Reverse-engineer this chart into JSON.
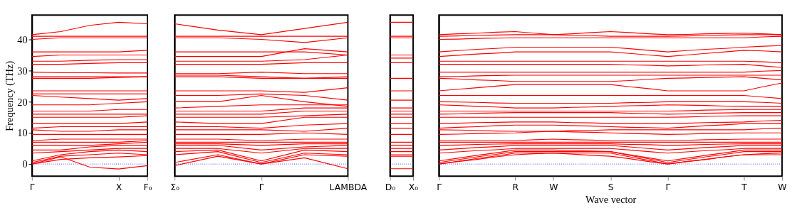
{
  "chart_data": [
    {
      "type": "line",
      "ylabel": "Frequency (THz)",
      "categories": [
        "Γ",
        null,
        null,
        "X",
        "F₀"
      ],
      "ylim": [
        -3.9,
        47.8
      ],
      "yticks": [
        0,
        10,
        20,
        30,
        40
      ],
      "legend": false,
      "marker": "none",
      "line_style": "solid",
      "ref_lines": [
        {
          "axis": "y",
          "value": 0,
          "color": "#0000ff",
          "line_style": "dotted"
        }
      ],
      "series": [
        {
          "color": "#ff0000",
          "values": [
            0,
            2.3,
            -1,
            -1.6,
            -0.5
          ]
        },
        {
          "color": "#ff0000",
          "values": [
            0,
            1.5,
            2,
            2.3,
            2.7
          ]
        },
        {
          "color": "#ff0000",
          "values": [
            0.5,
            2.5,
            3,
            3.5,
            3
          ]
        },
        {
          "color": "#ff0000",
          "values": [
            1,
            3,
            4,
            4.5,
            4
          ]
        },
        {
          "color": "#ff0000",
          "values": [
            3.5,
            4,
            4.5,
            5,
            5
          ]
        },
        {
          "color": "#ff0000",
          "values": [
            4.5,
            4.5,
            5.5,
            6,
            6
          ]
        },
        {
          "color": "#ff0000",
          "values": [
            6,
            6,
            6,
            6.5,
            7
          ]
        },
        {
          "color": "#ff0000",
          "values": [
            7,
            7,
            7,
            7,
            7.5
          ]
        },
        {
          "color": "#ff0000",
          "values": [
            7.5,
            8,
            8,
            8,
            8
          ]
        },
        {
          "color": "#ff0000",
          "values": [
            9.5,
            9.5,
            9.5,
            9.5,
            9.5
          ]
        },
        {
          "color": "#ff0000",
          "values": [
            11,
            10.5,
            10.5,
            11,
            11
          ]
        },
        {
          "color": "#ff0000",
          "values": [
            11.5,
            12,
            12,
            12,
            12
          ]
        },
        {
          "color": "#ff0000",
          "values": [
            13,
            13,
            13,
            13,
            13.5
          ]
        },
        {
          "color": "#ff0000",
          "values": [
            15,
            15,
            15,
            15,
            15.5
          ]
        },
        {
          "color": "#ff0000",
          "values": [
            16,
            16,
            16,
            16,
            16
          ]
        },
        {
          "color": "#ff0000",
          "values": [
            17,
            17,
            17,
            17.5,
            17.5
          ]
        },
        {
          "color": "#ff0000",
          "values": [
            19,
            19,
            19,
            19.5,
            20
          ]
        },
        {
          "color": "#ff0000",
          "values": [
            22,
            21.5,
            21,
            20.5,
            21
          ]
        },
        {
          "color": "#ff0000",
          "values": [
            22.5,
            22.5,
            22.5,
            22.5,
            22.5
          ]
        },
        {
          "color": "#ff0000",
          "values": [
            23.5,
            23.5,
            23.5,
            23.5,
            23.5
          ]
        },
        {
          "color": "#ff0000",
          "values": [
            27.5,
            27.5,
            27.5,
            27.8,
            28
          ]
        },
        {
          "color": "#ff0000",
          "values": [
            28,
            28,
            28,
            28,
            28
          ]
        },
        {
          "color": "#ff0000",
          "values": [
            29.5,
            29.3,
            29.3,
            29.2,
            29.2
          ]
        },
        {
          "color": "#ff0000",
          "values": [
            32,
            32,
            32.3,
            32.5,
            32.5
          ]
        },
        {
          "color": "#ff0000",
          "values": [
            33,
            33,
            33.3,
            33.5,
            33.5
          ]
        },
        {
          "color": "#ff0000",
          "values": [
            34.5,
            35,
            35,
            35,
            35
          ]
        },
        {
          "color": "#ff0000",
          "values": [
            36,
            36,
            36,
            36,
            36.5
          ]
        },
        {
          "color": "#ff0000",
          "values": [
            40,
            40.5,
            40.5,
            40.5,
            40.5
          ]
        },
        {
          "color": "#ff0000",
          "values": [
            41,
            41,
            41,
            41,
            41
          ]
        },
        {
          "color": "#ff0000",
          "values": [
            41.5,
            42.5,
            44.5,
            45.5,
            45
          ]
        }
      ]
    },
    {
      "type": "line",
      "categories": [
        "Σ₀",
        null,
        "Γ",
        null,
        "LAMBDA"
      ],
      "ylim": [
        -3.9,
        47.8
      ],
      "yticks": [
        0,
        10,
        20,
        30,
        40
      ],
      "tick_labels": "x",
      "legend": false,
      "marker": "none",
      "line_style": "solid",
      "ref_lines": [
        {
          "axis": "y",
          "value": 0,
          "color": "#0000ff",
          "line_style": "dotted"
        }
      ],
      "series": [
        {
          "color": "#ff0000",
          "values": [
            -0.5,
            2.5,
            0,
            2,
            -1.5
          ]
        },
        {
          "color": "#ff0000",
          "values": [
            0.5,
            3,
            0,
            3,
            2.5
          ]
        },
        {
          "color": "#ff0000",
          "values": [
            3,
            4,
            0.5,
            3.5,
            3
          ]
        },
        {
          "color": "#ff0000",
          "values": [
            4,
            4.5,
            1,
            4.5,
            4
          ]
        },
        {
          "color": "#ff0000",
          "values": [
            5,
            5,
            3.5,
            5,
            5
          ]
        },
        {
          "color": "#ff0000",
          "values": [
            6,
            6,
            4.5,
            5.5,
            6
          ]
        },
        {
          "color": "#ff0000",
          "values": [
            6.5,
            6.5,
            6,
            6.5,
            6.5
          ]
        },
        {
          "color": "#ff0000",
          "values": [
            7,
            7,
            7,
            7,
            7
          ]
        },
        {
          "color": "#ff0000",
          "values": [
            8,
            8,
            7.5,
            8,
            8
          ]
        },
        {
          "color": "#ff0000",
          "values": [
            9.5,
            9.5,
            9.5,
            10,
            9.5
          ]
        },
        {
          "color": "#ff0000",
          "values": [
            11,
            11,
            11,
            10.5,
            11.5
          ]
        },
        {
          "color": "#ff0000",
          "values": [
            12,
            12,
            11.5,
            12.5,
            13
          ]
        },
        {
          "color": "#ff0000",
          "values": [
            13.5,
            13,
            13,
            15,
            15
          ]
        },
        {
          "color": "#ff0000",
          "values": [
            15,
            15,
            15,
            15.5,
            16
          ]
        },
        {
          "color": "#ff0000",
          "values": [
            16,
            16,
            16,
            17,
            17
          ]
        },
        {
          "color": "#ff0000",
          "values": [
            17,
            17,
            17,
            18,
            18
          ]
        },
        {
          "color": "#ff0000",
          "values": [
            18,
            18.5,
            19,
            19,
            19
          ]
        },
        {
          "color": "#ff0000",
          "values": [
            20,
            20,
            22,
            20,
            18.5
          ]
        },
        {
          "color": "#ff0000",
          "values": [
            22,
            22,
            22.5,
            22,
            20.5
          ]
        },
        {
          "color": "#ff0000",
          "values": [
            23.5,
            23.5,
            23.5,
            23,
            24.5
          ]
        },
        {
          "color": "#ff0000",
          "values": [
            28,
            28,
            27.5,
            27.5,
            27.5
          ]
        },
        {
          "color": "#ff0000",
          "values": [
            28.5,
            28.5,
            28,
            27.5,
            28
          ]
        },
        {
          "color": "#ff0000",
          "values": [
            29,
            29,
            29.5,
            29,
            29
          ]
        },
        {
          "color": "#ff0000",
          "values": [
            32,
            32,
            32,
            32.5,
            32.5
          ]
        },
        {
          "color": "#ff0000",
          "values": [
            33,
            33,
            33,
            33.5,
            35
          ]
        },
        {
          "color": "#ff0000",
          "values": [
            34.5,
            34.5,
            34.5,
            37,
            36
          ]
        },
        {
          "color": "#ff0000",
          "values": [
            36,
            36,
            36,
            36,
            35
          ]
        },
        {
          "color": "#ff0000",
          "values": [
            40.5,
            40.5,
            40,
            39,
            40.5
          ]
        },
        {
          "color": "#ff0000",
          "values": [
            41,
            41,
            41,
            41,
            41
          ]
        },
        {
          "color": "#ff0000",
          "values": [
            45,
            43,
            41.5,
            43.5,
            45.5
          ]
        }
      ]
    },
    {
      "type": "line",
      "categories": [
        "D₀",
        "X₀"
      ],
      "ylim": [
        -3.9,
        47.8
      ],
      "yticks": [
        0,
        10,
        20,
        30,
        40
      ],
      "tick_labels": "x",
      "legend": false,
      "marker": "none",
      "line_style": "solid",
      "ref_lines": [
        {
          "axis": "y",
          "value": 0,
          "color": "#0000ff",
          "line_style": "dotted"
        }
      ],
      "series": [
        {
          "color": "#ff0000",
          "values": [
            -1.5,
            -1.5
          ]
        },
        {
          "color": "#ff0000",
          "values": [
            2.5,
            2.5
          ]
        },
        {
          "color": "#ff0000",
          "values": [
            3,
            3
          ]
        },
        {
          "color": "#ff0000",
          "values": [
            4,
            4
          ]
        },
        {
          "color": "#ff0000",
          "values": [
            5,
            5
          ]
        },
        {
          "color": "#ff0000",
          "values": [
            6,
            6
          ]
        },
        {
          "color": "#ff0000",
          "values": [
            7,
            7
          ]
        },
        {
          "color": "#ff0000",
          "values": [
            9.5,
            9.5
          ]
        },
        {
          "color": "#ff0000",
          "values": [
            11.5,
            11.5
          ]
        },
        {
          "color": "#ff0000",
          "values": [
            13,
            13
          ]
        },
        {
          "color": "#ff0000",
          "values": [
            15,
            15
          ]
        },
        {
          "color": "#ff0000",
          "values": [
            16,
            16
          ]
        },
        {
          "color": "#ff0000",
          "values": [
            17,
            17
          ]
        },
        {
          "color": "#ff0000",
          "values": [
            18,
            18
          ]
        },
        {
          "color": "#ff0000",
          "values": [
            20.5,
            20.5
          ]
        },
        {
          "color": "#ff0000",
          "values": [
            23.5,
            23.5
          ]
        },
        {
          "color": "#ff0000",
          "values": [
            27.5,
            27.5
          ]
        },
        {
          "color": "#ff0000",
          "values": [
            32.5,
            32.5
          ]
        },
        {
          "color": "#ff0000",
          "values": [
            34,
            34
          ]
        },
        {
          "color": "#ff0000",
          "values": [
            35,
            35
          ]
        },
        {
          "color": "#ff0000",
          "values": [
            40.5,
            40.5
          ]
        },
        {
          "color": "#ff0000",
          "values": [
            41,
            41
          ]
        },
        {
          "color": "#ff0000",
          "values": [
            45.5,
            45.5
          ]
        }
      ]
    },
    {
      "type": "line",
      "xlabel": "Wave vector",
      "categories": [
        "Γ",
        null,
        null,
        null,
        "R",
        null,
        "W",
        null,
        null,
        "S",
        null,
        null,
        "Γ",
        null,
        null,
        null,
        "T",
        null,
        "W"
      ],
      "ylim": [
        -3.9,
        47.8
      ],
      "yticks": [
        0,
        10,
        20,
        30,
        40
      ],
      "tick_labels": "x",
      "legend": false,
      "marker": "none",
      "line_style": "solid",
      "ref_lines": [
        {
          "axis": "y",
          "value": 0,
          "color": "#0000ff",
          "line_style": "dotted"
        }
      ],
      "series": [
        {
          "color": "#ff0000",
          "values": [
            0,
            0.8,
            1.5,
            2.3,
            3,
            3.3,
            3.5,
            3.2,
            2.8,
            2.5,
            1.7,
            0.8,
            0,
            0.8,
            1.5,
            2.3,
            3,
            3,
            3
          ]
        },
        {
          "color": "#ff0000",
          "values": [
            0,
            0.9,
            1.8,
            2.6,
            3.5,
            3.5,
            3.5,
            3.5,
            3.5,
            3.5,
            2.3,
            1.2,
            0,
            0.8,
            1.5,
            2.3,
            3,
            3.3,
            3.5
          ]
        },
        {
          "color": "#ff0000",
          "values": [
            0.5,
            1.4,
            2.3,
            3.1,
            4,
            4,
            4,
            4,
            4,
            4,
            2.8,
            1.7,
            0.5,
            1.4,
            2.3,
            3.1,
            4,
            4,
            4
          ]
        },
        {
          "color": "#ff0000",
          "values": [
            1,
            1.9,
            2.8,
            3.6,
            4.5,
            4.5,
            4.5,
            4.3,
            4.2,
            4,
            3,
            2,
            1,
            1.9,
            2.8,
            3.6,
            4.5,
            4.5,
            4.5
          ]
        },
        {
          "color": "#ff0000",
          "values": [
            3.5,
            3.9,
            4.3,
            4.6,
            5,
            5,
            5,
            5,
            5,
            5,
            4.5,
            4,
            3.5,
            3.9,
            4.3,
            4.6,
            5,
            5,
            5
          ]
        },
        {
          "color": "#ff0000",
          "values": [
            4.5,
            4.9,
            5.3,
            5.6,
            6,
            6,
            6,
            6,
            6,
            6,
            5.5,
            5,
            4.5,
            4.9,
            5.3,
            5.6,
            6,
            6,
            6
          ]
        },
        {
          "color": "#ff0000",
          "values": [
            6,
            6.1,
            6.3,
            6.4,
            6.5,
            6.5,
            6.5,
            6.5,
            6.5,
            6.5,
            6.3,
            6.2,
            6,
            6.1,
            6.3,
            6.4,
            6.5,
            6.5,
            6.5
          ]
        },
        {
          "color": "#ff0000",
          "values": [
            7,
            7,
            7,
            7,
            7,
            7,
            7,
            7,
            7,
            7,
            7,
            7,
            7,
            7,
            7,
            7,
            7,
            7,
            7
          ]
        },
        {
          "color": "#ff0000",
          "values": [
            7.5,
            7.5,
            7.5,
            7.5,
            7.5,
            7.8,
            8,
            7.8,
            7.7,
            7.5,
            7.5,
            7.5,
            7.5,
            7.6,
            7.8,
            7.9,
            8,
            8,
            8
          ]
        },
        {
          "color": "#ff0000",
          "values": [
            9.5,
            9.6,
            9.8,
            9.9,
            10,
            10.3,
            10.5,
            10.3,
            10.2,
            10,
            9.8,
            9.7,
            9.5,
            9.6,
            9.8,
            9.9,
            10,
            10,
            10
          ]
        },
        {
          "color": "#ff0000",
          "values": [
            11,
            10.9,
            10.8,
            10.6,
            10.5,
            10.5,
            10.5,
            10.7,
            10.8,
            11,
            11,
            11,
            11,
            11,
            11,
            11,
            11,
            11.3,
            11.5
          ]
        },
        {
          "color": "#ff0000",
          "values": [
            11.5,
            11.8,
            12,
            12.3,
            12.5,
            12.5,
            12.5,
            12.3,
            12.2,
            12,
            11.8,
            11.7,
            11.5,
            11.9,
            12.3,
            12.6,
            13,
            13,
            13
          ]
        },
        {
          "color": "#ff0000",
          "values": [
            13,
            13.1,
            13.3,
            13.4,
            13.5,
            13.5,
            13.5,
            13.3,
            13.2,
            13,
            13,
            13,
            13,
            13.1,
            13.3,
            13.4,
            13.5,
            13.8,
            14
          ]
        },
        {
          "color": "#ff0000",
          "values": [
            15,
            15,
            15,
            15,
            15,
            15,
            15,
            15,
            15,
            15,
            15,
            15,
            15,
            15.1,
            15.3,
            15.4,
            15.5,
            15.5,
            15.5
          ]
        },
        {
          "color": "#ff0000",
          "values": [
            16,
            16.1,
            16.3,
            16.4,
            16.5,
            16.5,
            16.5,
            16.5,
            16.5,
            16.5,
            16.3,
            16.2,
            16,
            16.1,
            16.3,
            16.4,
            16.5,
            16.5,
            16.5
          ]
        },
        {
          "color": "#ff0000",
          "values": [
            17,
            17,
            17,
            17,
            17,
            17,
            17,
            17,
            17,
            17,
            17,
            17,
            17,
            17.1,
            17.3,
            17.4,
            17.5,
            17.5,
            17.5
          ]
        },
        {
          "color": "#ff0000",
          "values": [
            19,
            18.8,
            18.5,
            18.3,
            18,
            18,
            18,
            18.2,
            18.3,
            18.5,
            18.7,
            18.8,
            19,
            18.9,
            18.8,
            18.6,
            18.5,
            18.5,
            18.5
          ]
        },
        {
          "color": "#ff0000",
          "values": [
            20,
            19.9,
            19.8,
            19.6,
            19.5,
            19.5,
            19.5,
            19.5,
            19.5,
            19.5,
            19.7,
            19.8,
            20,
            20,
            20,
            20,
            20,
            19.8,
            19.5
          ]
        },
        {
          "color": "#ff0000",
          "values": [
            22,
            22,
            22,
            22,
            22,
            22,
            22,
            22,
            22,
            22,
            22,
            22,
            22,
            22,
            22,
            22,
            22,
            21.5,
            21
          ]
        },
        {
          "color": "#ff0000",
          "values": [
            23.5,
            24,
            24.5,
            25,
            25.5,
            25.5,
            25.5,
            25.5,
            25.5,
            25.5,
            24.8,
            24.2,
            23.5,
            23.5,
            23.5,
            23.5,
            23.5,
            24.8,
            26
          ]
        },
        {
          "color": "#ff0000",
          "values": [
            27.5,
            27.3,
            27,
            26.8,
            26.5,
            26.5,
            26.5,
            26.5,
            26.5,
            26.5,
            26.8,
            27.2,
            27.5,
            27.6,
            27.8,
            27.9,
            28,
            27.5,
            27
          ]
        },
        {
          "color": "#ff0000",
          "values": [
            28,
            28.1,
            28.3,
            28.4,
            28.5,
            28.5,
            28.5,
            28.5,
            28.5,
            28.5,
            28.5,
            28.5,
            28.5,
            28.5,
            28.5,
            28.5,
            28.5,
            28.5,
            28.5
          ]
        },
        {
          "color": "#ff0000",
          "values": [
            29.5,
            29.5,
            29.5,
            29.5,
            29.5,
            29.5,
            29.5,
            29.5,
            29.5,
            29.5,
            29.5,
            29.5,
            29.5,
            29.5,
            29.5,
            29.5,
            29.5,
            29.8,
            30
          ]
        },
        {
          "color": "#ff0000",
          "values": [
            32,
            32,
            32,
            32,
            32,
            32,
            32,
            32,
            32,
            32,
            31.8,
            31.7,
            31.5,
            31.6,
            31.8,
            31.9,
            32,
            31.5,
            31
          ]
        },
        {
          "color": "#ff0000",
          "values": [
            33,
            33,
            33,
            33,
            33,
            33,
            33,
            33,
            33,
            33,
            33,
            33,
            33,
            33,
            33,
            33,
            33,
            32.8,
            32.5
          ]
        },
        {
          "color": "#ff0000",
          "values": [
            34.5,
            34.9,
            35.3,
            35.6,
            36,
            36,
            36,
            36,
            36,
            36,
            35.5,
            35,
            34.5,
            35,
            35.5,
            36,
            36.5,
            36.3,
            36
          ]
        },
        {
          "color": "#ff0000",
          "values": [
            36,
            36.4,
            36.8,
            37.1,
            37.5,
            37.5,
            37.5,
            37.5,
            37.5,
            37.5,
            37,
            36.5,
            36,
            36.4,
            36.8,
            37.1,
            37.5,
            37.8,
            38
          ]
        },
        {
          "color": "#ff0000",
          "values": [
            40,
            40.1,
            40.3,
            40.4,
            40.5,
            40.5,
            40.5,
            40.5,
            40.5,
            40.5,
            40.5,
            40.5,
            40.5,
            40.5,
            40.5,
            40.5,
            40.5,
            40.8,
            41
          ]
        },
        {
          "color": "#ff0000",
          "values": [
            41,
            41.1,
            41.3,
            41.4,
            41.5,
            41.5,
            41.5,
            41.3,
            41.2,
            41,
            41,
            41,
            41,
            41.1,
            41.3,
            41.4,
            41.5,
            41.5,
            41.5
          ]
        },
        {
          "color": "#ff0000",
          "values": [
            41.5,
            41.8,
            42,
            42.3,
            42.5,
            42,
            41.5,
            41.8,
            42.2,
            42.5,
            42.2,
            41.8,
            41.5,
            41.6,
            41.8,
            41.9,
            42,
            41.8,
            41.5
          ]
        }
      ]
    }
  ]
}
